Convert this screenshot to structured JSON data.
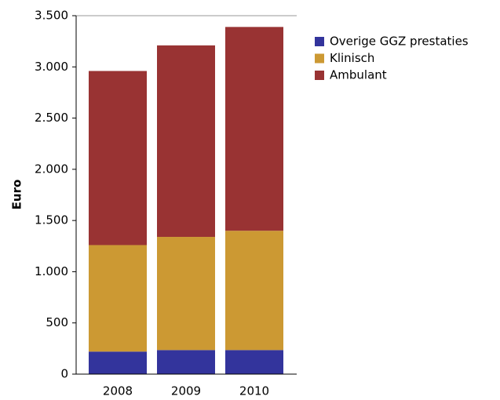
{
  "chart_data": {
    "type": "stacked_bar",
    "y_label": "Euro",
    "categories": [
      "2008",
      "2009",
      "2010"
    ],
    "series": [
      {
        "name": "Overige GGZ prestaties",
        "color": "#33349c",
        "values": [
          220,
          235,
          235
        ]
      },
      {
        "name": "Klinisch",
        "color": "#cc9933",
        "values": [
          1040,
          1105,
          1165
        ]
      },
      {
        "name": "Ambulant",
        "color": "#993333",
        "values": [
          1700,
          1870,
          1990
        ]
      }
    ],
    "ylim": [
      0,
      3500
    ],
    "yticks": [
      0,
      {
        "value": 500,
        "label": "500"
      },
      {
        "value": 1000,
        "label": "1.000"
      },
      {
        "value": 1500,
        "label": "1.500"
      },
      {
        "value": 2000,
        "label": "2.000"
      },
      {
        "value": 2500,
        "label": "2.500"
      },
      {
        "value": 3000,
        "label": "3.000"
      },
      {
        "value": 3500,
        "label": "3.500"
      }
    ],
    "legend": "right"
  }
}
